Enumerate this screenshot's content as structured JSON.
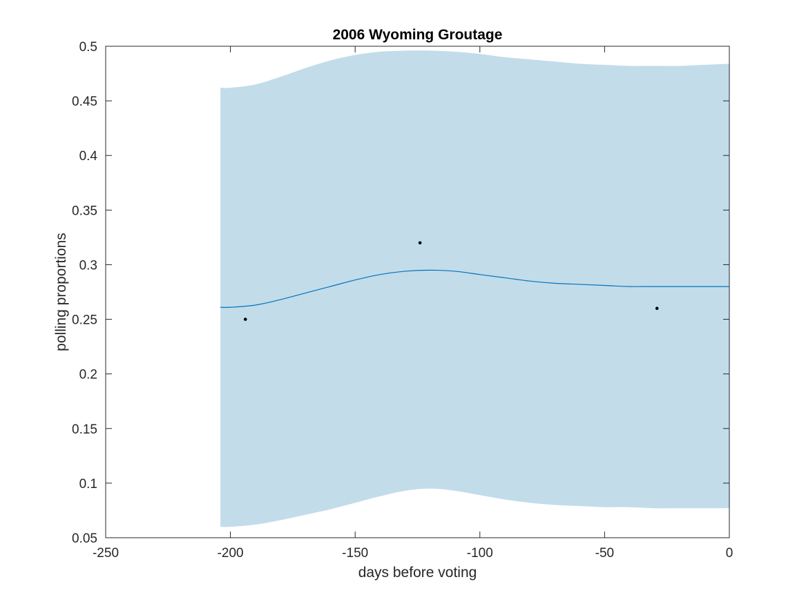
{
  "chart_data": {
    "type": "line",
    "title": "2006 Wyoming Groutage",
    "xlabel": "days before voting",
    "ylabel": "polling proportions",
    "xlim": [
      -250,
      0
    ],
    "ylim": [
      0.05,
      0.5
    ],
    "xticks": [
      -250,
      -200,
      -150,
      -100,
      -50,
      0
    ],
    "yticks": [
      0.05,
      0.1,
      0.15,
      0.2,
      0.25,
      0.3,
      0.35,
      0.4,
      0.45,
      0.5
    ],
    "xtick_labels": [
      "-250",
      "-200",
      "-150",
      "-100",
      "-50",
      "0"
    ],
    "ytick_labels": [
      "0.05",
      "0.1",
      "0.15",
      "0.2",
      "0.25",
      "0.3",
      "0.35",
      "0.4",
      "0.45",
      "0.5"
    ],
    "grid": false,
    "colors": {
      "band": "#c2dcea",
      "mean_line": "#0072bd",
      "points": "#000000",
      "axes": "#262626"
    },
    "series": [
      {
        "type": "area-band",
        "x": [
          -204,
          -200,
          -190,
          -180,
          -170,
          -160,
          -150,
          -140,
          -130,
          -120,
          -110,
          -100,
          -90,
          -80,
          -70,
          -60,
          -50,
          -40,
          -30,
          -20,
          -10,
          0
        ],
        "lower": [
          0.06,
          0.06,
          0.062,
          0.066,
          0.071,
          0.076,
          0.082,
          0.088,
          0.093,
          0.095,
          0.093,
          0.089,
          0.085,
          0.082,
          0.08,
          0.079,
          0.078,
          0.078,
          0.077,
          0.077,
          0.077,
          0.077
        ],
        "upper": [
          0.462,
          0.462,
          0.465,
          0.472,
          0.48,
          0.487,
          0.492,
          0.495,
          0.496,
          0.496,
          0.495,
          0.493,
          0.49,
          0.488,
          0.486,
          0.484,
          0.483,
          0.482,
          0.482,
          0.482,
          0.483,
          0.484
        ]
      },
      {
        "type": "line",
        "x": [
          -204,
          -200,
          -190,
          -180,
          -170,
          -160,
          -150,
          -140,
          -130,
          -120,
          -110,
          -100,
          -90,
          -80,
          -70,
          -60,
          -50,
          -40,
          -30,
          -20,
          -10,
          0
        ],
        "mean": [
          0.261,
          0.261,
          0.263,
          0.268,
          0.274,
          0.28,
          0.286,
          0.291,
          0.294,
          0.295,
          0.294,
          0.291,
          0.288,
          0.285,
          0.283,
          0.282,
          0.281,
          0.28,
          0.28,
          0.28,
          0.28,
          0.28
        ]
      },
      {
        "type": "scatter",
        "x": [
          -194,
          -124,
          -29
        ],
        "y": [
          0.25,
          0.32,
          0.26
        ]
      }
    ]
  }
}
